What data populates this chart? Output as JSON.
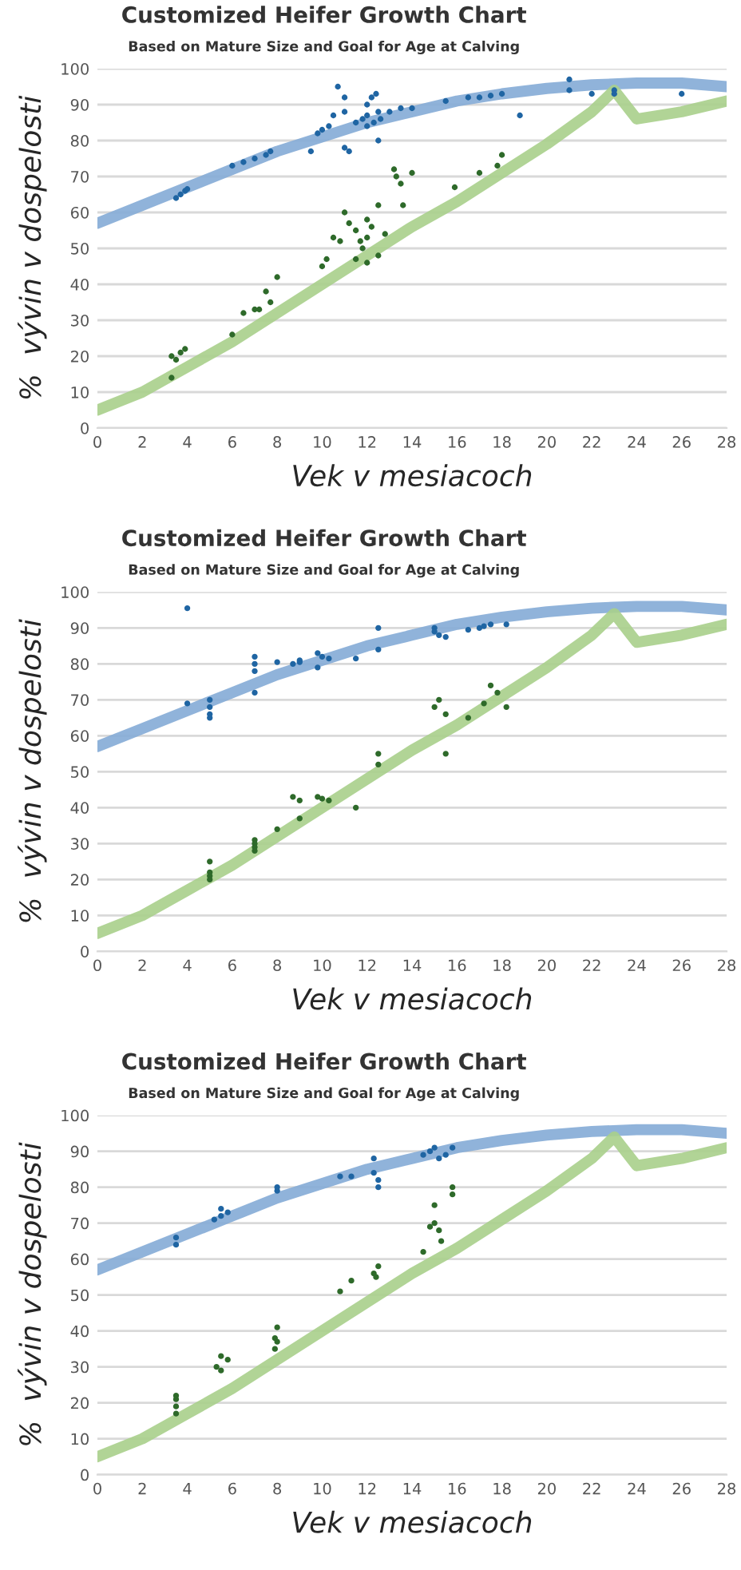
{
  "chart_data": [
    {
      "type": "scatter",
      "title": "Customized Heifer Growth Chart",
      "subtitle": "Based on Mature Size and Goal for Age at Calving",
      "xlabel": "Vek v mesiacoch",
      "ylabel": "%  vývin v dospelosti",
      "xlim": [
        0,
        28
      ],
      "xticks": [
        0,
        2,
        4,
        6,
        8,
        10,
        12,
        14,
        16,
        18,
        20,
        22,
        24,
        26,
        28
      ],
      "ylim": [
        0,
        100
      ],
      "yticks": [
        0,
        10,
        20,
        30,
        40,
        50,
        60,
        70,
        80,
        90,
        100
      ],
      "grid": "y",
      "series": [
        {
          "type": "line",
          "marker": "none",
          "color": "#84abd6",
          "x": [
            0,
            2,
            4,
            6,
            8,
            10,
            12,
            14,
            16,
            18,
            20,
            22,
            24,
            26,
            28
          ],
          "values": [
            57,
            62,
            67,
            72,
            77,
            81,
            85,
            88,
            91,
            93,
            94.5,
            95.5,
            96,
            96,
            95
          ]
        },
        {
          "type": "line",
          "marker": "none",
          "color": "#a9cf8b",
          "x": [
            0,
            2,
            4,
            6,
            8,
            10,
            12,
            14,
            16,
            18,
            20,
            22,
            23,
            24,
            26,
            28
          ],
          "values": [
            5,
            10,
            17,
            24,
            32,
            40,
            48,
            56,
            63,
            71,
            79,
            88,
            94,
            86,
            88,
            91
          ]
        },
        {
          "marker": "circle",
          "color": "#1f65a3",
          "x": [
            3.5,
            3.7,
            3.9,
            4,
            6,
            6.5,
            7,
            7.5,
            7.7,
            9.5,
            9.8,
            10,
            10.3,
            10.5,
            10.7,
            11,
            11,
            11,
            11.2,
            11.5,
            11.8,
            12,
            12,
            12,
            12.2,
            12.4,
            12.5,
            12.5,
            12.3,
            12.6,
            13,
            13.5,
            14,
            15.5,
            16.5,
            17,
            17.5,
            18,
            18.8,
            21,
            21,
            22,
            23,
            23,
            26
          ],
          "values": [
            64,
            65,
            66,
            66.5,
            73,
            74,
            75,
            76,
            77,
            77,
            82,
            83,
            84,
            87,
            95,
            92,
            88,
            78,
            77,
            85,
            86,
            84,
            87,
            90,
            92,
            93,
            88,
            80,
            85,
            86,
            88,
            89,
            89,
            91,
            92,
            92,
            92.5,
            93,
            87,
            97,
            94,
            93,
            94,
            93,
            93
          ]
        },
        {
          "marker": "circle",
          "color": "#2e6a2a",
          "x": [
            3.3,
            3.5,
            3.7,
            3.9,
            3.3,
            6,
            6.5,
            7,
            7.2,
            7.5,
            7.7,
            8,
            10,
            10.2,
            10.5,
            10.8,
            11,
            11.2,
            11.5,
            11.5,
            11.8,
            12,
            12,
            12.2,
            12.5,
            12.5,
            12.8,
            12,
            11.7,
            13.2,
            13.3,
            13.5,
            13.6,
            14,
            15.9,
            17,
            17.8,
            18
          ],
          "values": [
            20,
            19,
            21,
            22,
            14,
            26,
            32,
            33,
            33,
            38,
            35,
            42,
            45,
            47,
            53,
            52,
            60,
            57,
            55,
            47,
            50,
            53,
            58,
            56,
            62,
            48,
            54,
            46,
            52,
            72,
            70,
            68,
            62,
            71,
            67,
            71,
            73,
            76
          ]
        }
      ]
    },
    {
      "type": "scatter",
      "title": "Customized Heifer Growth Chart",
      "subtitle": "Based on Mature Size and Goal for Age at Calving",
      "xlabel": "Vek v mesiacoch",
      "ylabel": "%  vývin v dospelosti",
      "xlim": [
        0,
        28
      ],
      "xticks": [
        0,
        2,
        4,
        6,
        8,
        10,
        12,
        14,
        16,
        18,
        20,
        22,
        24,
        26,
        28
      ],
      "ylim": [
        0,
        100
      ],
      "yticks": [
        0,
        10,
        20,
        30,
        40,
        50,
        60,
        70,
        80,
        90,
        100
      ],
      "grid": "y",
      "series": [
        {
          "type": "line",
          "marker": "none",
          "color": "#84abd6",
          "x": [
            0,
            2,
            4,
            6,
            8,
            10,
            12,
            14,
            16,
            18,
            20,
            22,
            24,
            26,
            28
          ],
          "values": [
            57,
            62,
            67,
            72,
            77,
            81,
            85,
            88,
            91,
            93,
            94.5,
            95.5,
            96,
            96,
            95
          ]
        },
        {
          "type": "line",
          "marker": "none",
          "color": "#a9cf8b",
          "x": [
            0,
            2,
            4,
            6,
            8,
            10,
            12,
            14,
            16,
            18,
            20,
            22,
            23,
            24,
            26,
            28
          ],
          "values": [
            5,
            10,
            17,
            24,
            32,
            40,
            48,
            56,
            63,
            71,
            79,
            88,
            94,
            86,
            88,
            91
          ]
        },
        {
          "marker": "circle",
          "color": "#1f65a3",
          "x": [
            4,
            4,
            5,
            5,
            5,
            5,
            7,
            7,
            7,
            7,
            8,
            8.7,
            9,
            9,
            9.8,
            9.8,
            10,
            10.3,
            11.5,
            12.5,
            12.5,
            15,
            15,
            15.2,
            15.5,
            16.5,
            17,
            17.5,
            17.2,
            18.2
          ],
          "values": [
            95.5,
            69,
            70,
            68,
            66,
            65,
            82,
            80,
            78,
            72,
            80.5,
            80,
            81,
            80.5,
            79,
            83,
            82,
            81.5,
            81.5,
            90,
            84,
            90,
            89,
            88,
            87.5,
            89.5,
            90,
            91,
            90.5,
            91
          ]
        },
        {
          "marker": "circle",
          "color": "#2e6a2a",
          "x": [
            5,
            5,
            5,
            5,
            7,
            7,
            7,
            7,
            8,
            8.7,
            9,
            9,
            9.8,
            10,
            10.3,
            11.5,
            12.5,
            12.5,
            15,
            15.2,
            15.5,
            15.5,
            16.5,
            17.2,
            17.5,
            17.8,
            18.2
          ],
          "values": [
            25,
            22,
            21,
            20,
            31,
            30,
            29,
            28,
            34,
            43,
            42,
            37,
            43,
            42.5,
            42,
            40,
            55,
            52,
            68,
            70,
            66,
            55,
            65,
            69,
            74,
            72,
            68
          ]
        }
      ]
    },
    {
      "type": "scatter",
      "title": "Customized Heifer Growth Chart",
      "subtitle": "Based on Mature Size and Goal for Age at Calving",
      "xlabel": "Vek v mesiacoch",
      "ylabel": "%  vývin v dospelosti",
      "xlim": [
        0,
        28
      ],
      "xticks": [
        0,
        2,
        4,
        6,
        8,
        10,
        12,
        14,
        16,
        18,
        20,
        22,
        24,
        26,
        28
      ],
      "ylim": [
        0,
        100
      ],
      "yticks": [
        0,
        10,
        20,
        30,
        40,
        50,
        60,
        70,
        80,
        90,
        100
      ],
      "grid": "y",
      "series": [
        {
          "type": "line",
          "marker": "none",
          "color": "#84abd6",
          "x": [
            0,
            2,
            4,
            6,
            8,
            10,
            12,
            14,
            16,
            18,
            20,
            22,
            24,
            26,
            28
          ],
          "values": [
            57,
            62,
            67,
            72,
            77,
            81,
            85,
            88,
            91,
            93,
            94.5,
            95.5,
            96,
            96,
            95
          ]
        },
        {
          "type": "line",
          "marker": "none",
          "color": "#a9cf8b",
          "x": [
            0,
            2,
            4,
            6,
            8,
            10,
            12,
            14,
            16,
            18,
            20,
            22,
            23,
            24,
            26,
            28
          ],
          "values": [
            5,
            10,
            17,
            24,
            32,
            40,
            48,
            56,
            63,
            71,
            79,
            88,
            94,
            86,
            88,
            91
          ]
        },
        {
          "marker": "circle",
          "color": "#1f65a3",
          "x": [
            3.5,
            3.5,
            5.2,
            5.5,
            5.8,
            5.5,
            8,
            8,
            10.8,
            11.3,
            12.3,
            12.3,
            12.5,
            12.5,
            14.5,
            14.8,
            15,
            15.2,
            15.5,
            15.8
          ],
          "values": [
            64,
            66,
            71,
            72,
            73,
            74,
            79,
            80,
            83,
            83,
            88,
            84,
            82,
            80,
            89,
            90,
            91,
            88,
            89,
            91
          ]
        },
        {
          "marker": "circle",
          "color": "#2e6a2a",
          "x": [
            3.5,
            3.5,
            3.5,
            3.5,
            5.3,
            5.5,
            5.8,
            5.5,
            7.9,
            7.9,
            8,
            8,
            10.8,
            11.3,
            12.3,
            12.5,
            12.4,
            14.5,
            14.8,
            15,
            15,
            15.2,
            15.3,
            15.8,
            15.8
          ],
          "values": [
            17,
            19,
            21,
            22,
            30,
            33,
            32,
            29,
            35,
            38,
            41,
            37,
            51,
            54,
            56,
            58,
            55,
            62,
            69,
            70,
            75,
            68,
            65,
            80,
            78
          ]
        }
      ]
    }
  ]
}
